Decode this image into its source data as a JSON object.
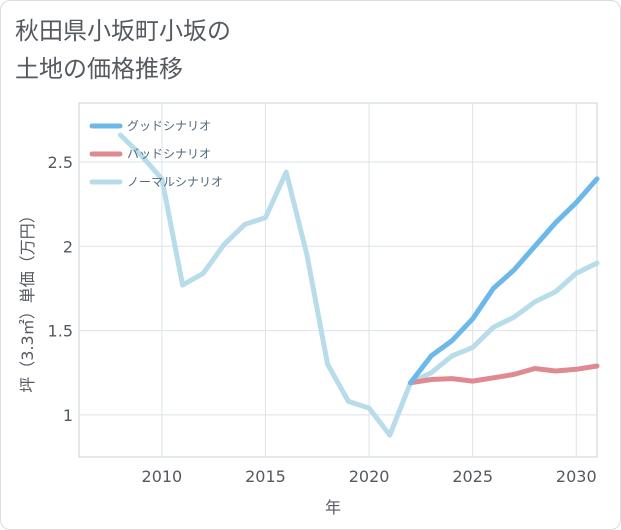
{
  "title_line1": "秋田県小坂町小坂の",
  "title_line2": "土地の価格推移",
  "chart_data": {
    "type": "line",
    "title": "秋田県小坂町小坂の土地の価格推移",
    "xlabel": "年",
    "ylabel": "坪（3.3㎡）単価（万円）",
    "xlim": [
      2006,
      2031
    ],
    "ylim": [
      0.75,
      2.85
    ],
    "xticks": [
      2010,
      2015,
      2020,
      2025,
      2030
    ],
    "yticks": [
      1,
      1.5,
      2,
      2.5
    ],
    "ytick_labels": [
      "1",
      "1.5",
      "2",
      "2.5"
    ],
    "grid": true,
    "legend_position": "top-left",
    "series": [
      {
        "name": "グッドシナリオ",
        "color": "#6cb8ea",
        "x": [
          2022,
          2023,
          2024,
          2025,
          2026,
          2027,
          2028,
          2029,
          2030,
          2031
        ],
        "y": [
          1.19,
          1.35,
          1.44,
          1.57,
          1.75,
          1.86,
          2.0,
          2.14,
          2.26,
          2.4
        ]
      },
      {
        "name": "バッドシナリオ",
        "color": "#de8a90",
        "x": [
          2022,
          2023,
          2024,
          2025,
          2026,
          2027,
          2028,
          2029,
          2030,
          2031
        ],
        "y": [
          1.19,
          1.21,
          1.215,
          1.2,
          1.22,
          1.24,
          1.275,
          1.26,
          1.27,
          1.29
        ]
      },
      {
        "name": "ノーマルシナリオ",
        "color": "#b8dcea",
        "x": [
          2008,
          2009,
          2010,
          2011,
          2012,
          2013,
          2014,
          2015,
          2016,
          2017,
          2018,
          2019,
          2020,
          2021,
          2022,
          2023,
          2024,
          2025,
          2026,
          2027,
          2028,
          2029,
          2030,
          2031
        ],
        "y": [
          2.66,
          2.54,
          2.4,
          1.77,
          1.84,
          2.01,
          2.13,
          2.17,
          2.44,
          1.95,
          1.3,
          1.08,
          1.04,
          0.88,
          1.19,
          1.25,
          1.35,
          1.4,
          1.52,
          1.58,
          1.67,
          1.73,
          1.84,
          1.9
        ]
      }
    ]
  }
}
